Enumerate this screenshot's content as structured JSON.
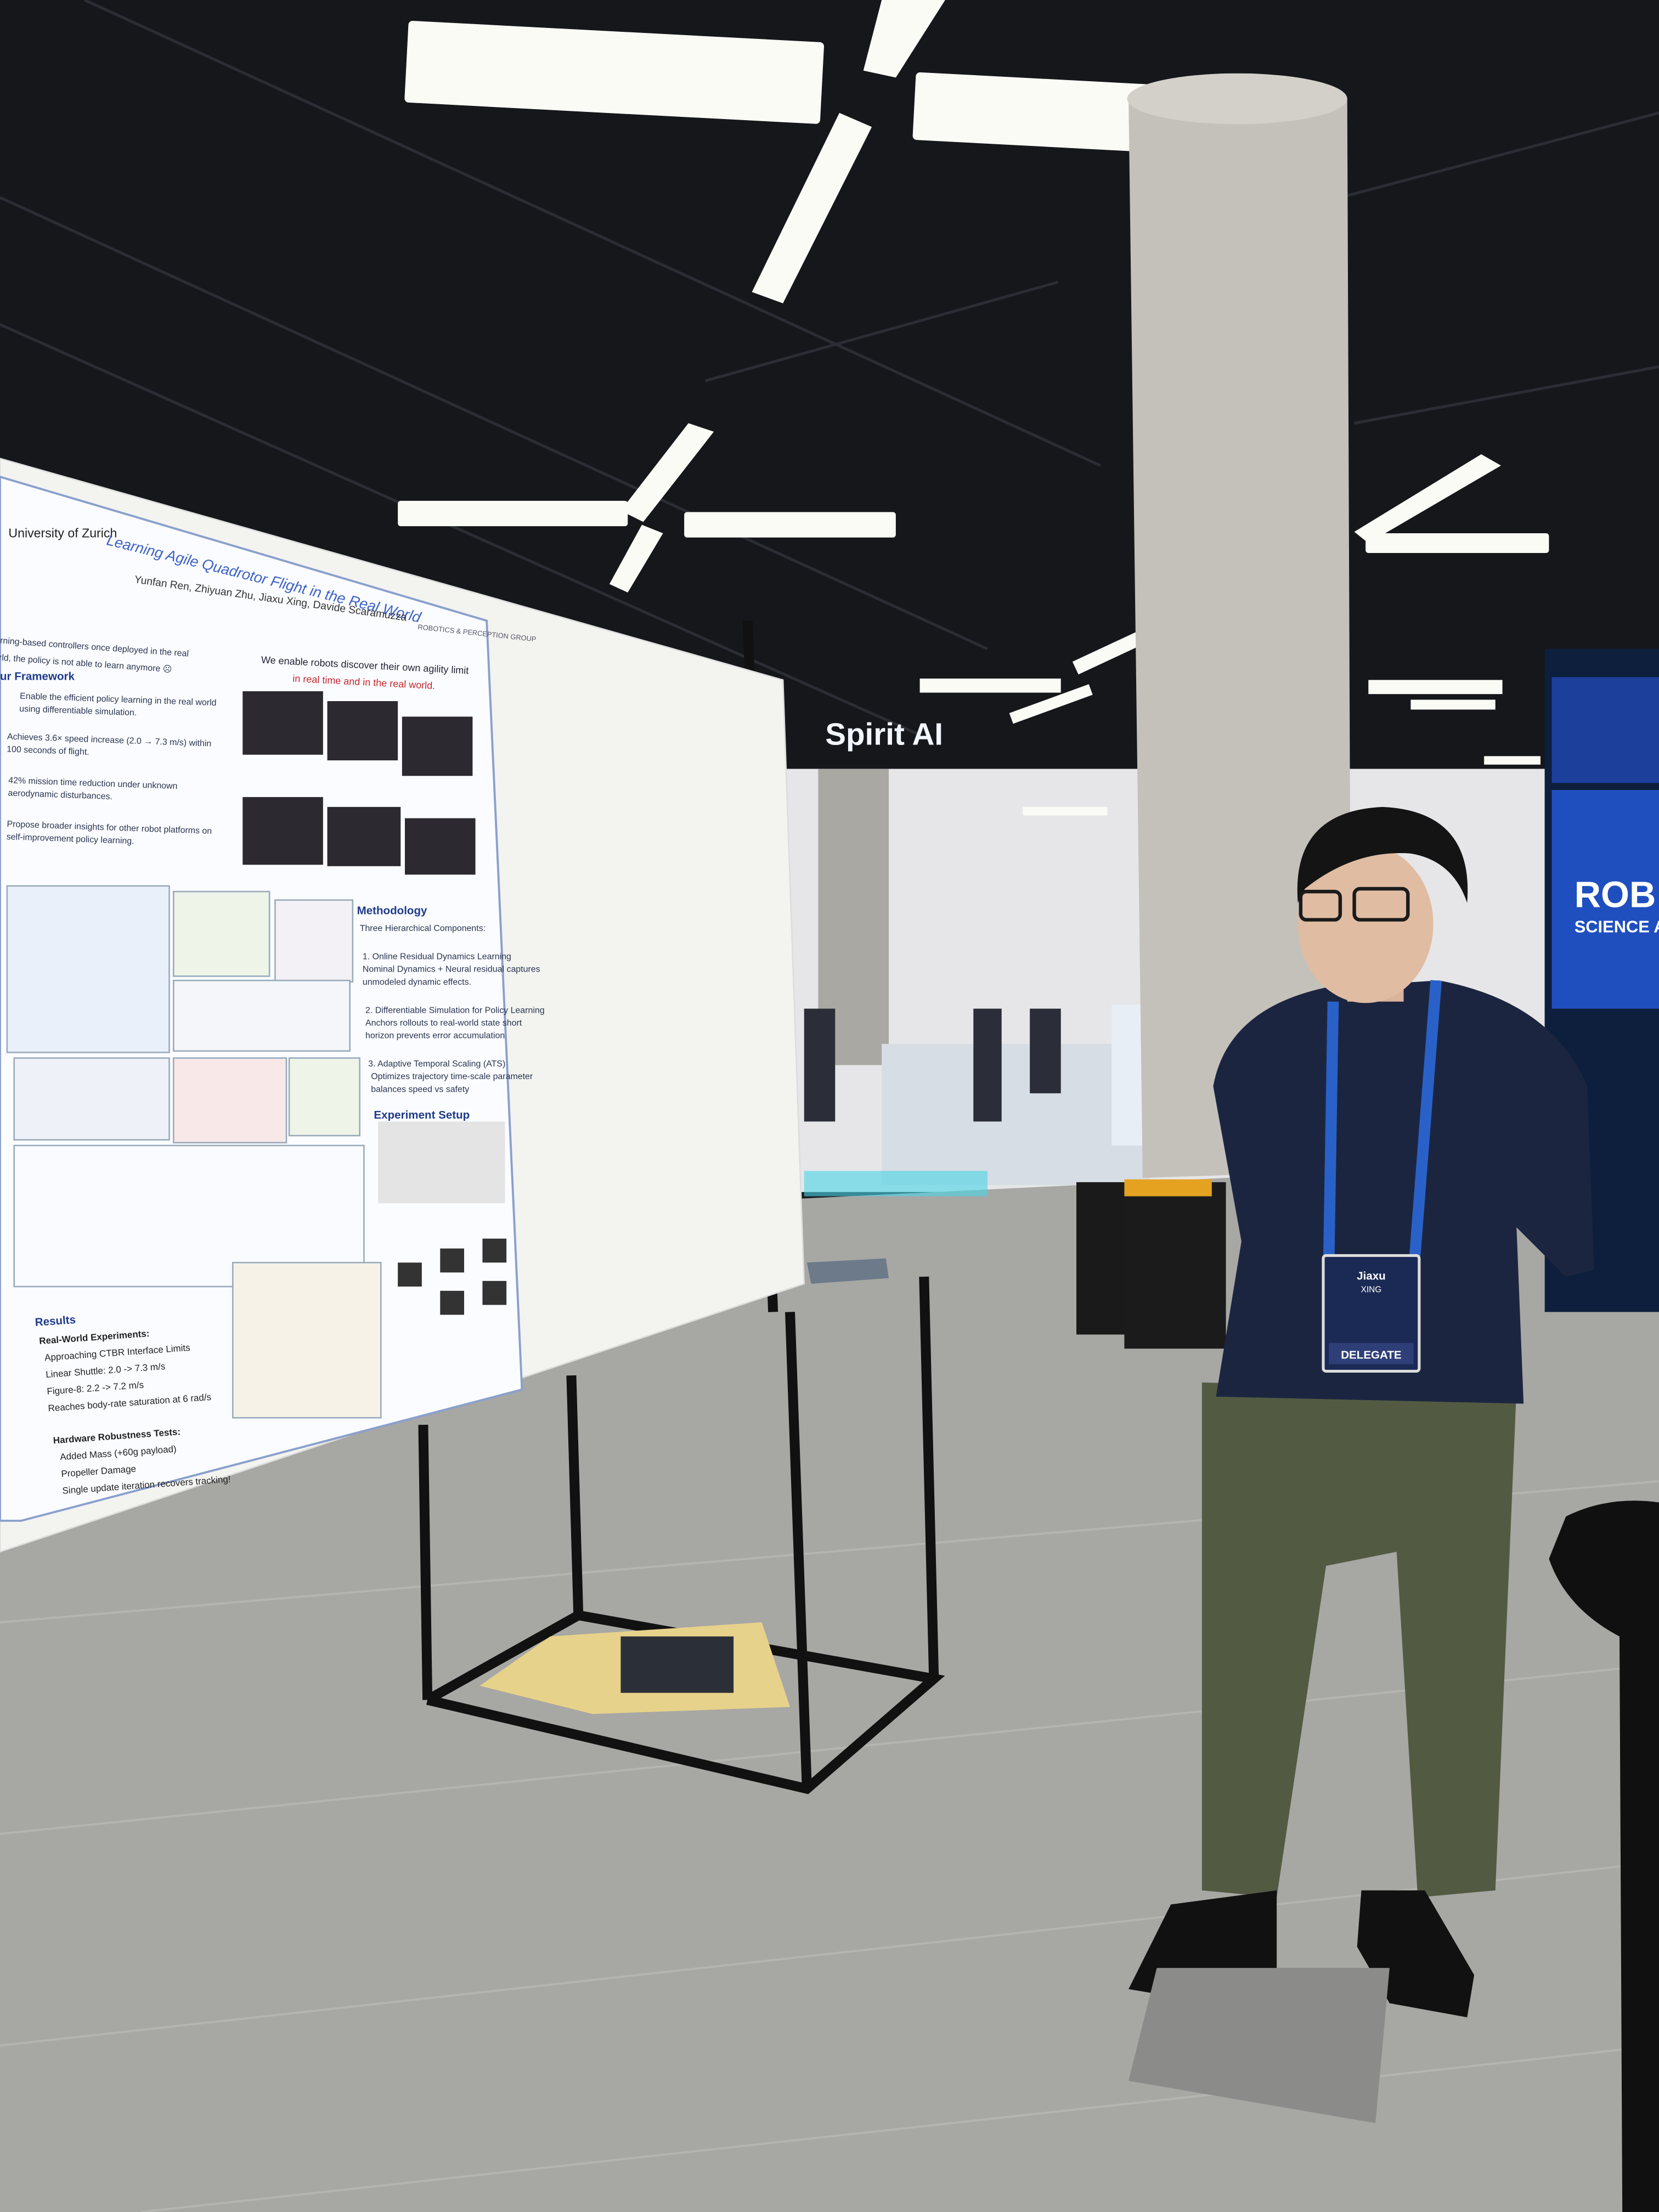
{
  "poster": {
    "institution": "University of Zurich",
    "title": "Learning Agile Quadrotor Flight in the Real World",
    "authors": "Yunfan Ren, Zhiyuan Zhu, Jiaxu Xing, Davide Scaramuzza",
    "group": "ROBOTICS & PERCEPTION GROUP",
    "intro": [
      "rning-based controllers once deployed in the real",
      "rld, the policy is not able to learn anymore ☹"
    ],
    "tagline": [
      "We enable robots discover their own agility limit",
      "in real time and in the real world."
    ],
    "framework": {
      "heading": "ur Framework",
      "points": [
        "Enable the efficient policy learning in the real world",
        "using differentiable simulation.",
        "Achieves 3.6× speed increase (2.0 → 7.3 m/s) within",
        "100 seconds of flight.",
        "42% mission time reduction under unknown",
        "aerodynamic disturbances.",
        "Propose broader insights for other robot platforms on",
        "self-improvement policy learning."
      ]
    },
    "methodology": {
      "heading": "Methodology",
      "lines": [
        "Three Hierarchical Components:",
        "1. Online Residual Dynamics Learning",
        "Nominal Dynamics + Neural residual captures",
        "unmodeled dynamic effects.",
        "2. Differentiable Simulation for Policy Learning",
        "Anchors rollouts to real-world state short",
        "horizon prevents error accumulation",
        "3. Adaptive Temporal Scaling (ATS)",
        "Optimizes trajectory time-scale parameter",
        "balances speed vs safety"
      ],
      "setup": "Experiment Setup"
    },
    "results": {
      "heading": "Results",
      "lines": [
        "Real-World Experiments:",
        "Approaching CTBR Interface Limits",
        "Linear Shuttle: 2.0 -> 7.3 m/s",
        "Figure-8: 2.2 -> 7.2 m/s",
        "Reaches body-rate saturation at 6 rad/s",
        "Hardware Robustness Tests:",
        "Added Mass (+60g payload)",
        "Propeller Damage",
        "Single update iteration recovers tracking!"
      ]
    }
  },
  "badge": {
    "first_name": "Jiaxu",
    "last_name": "XING",
    "role": "DELEGATE"
  },
  "signs": {
    "booth": "Spirit AI",
    "display": [
      "ROB",
      "SCIENCE A"
    ]
  }
}
